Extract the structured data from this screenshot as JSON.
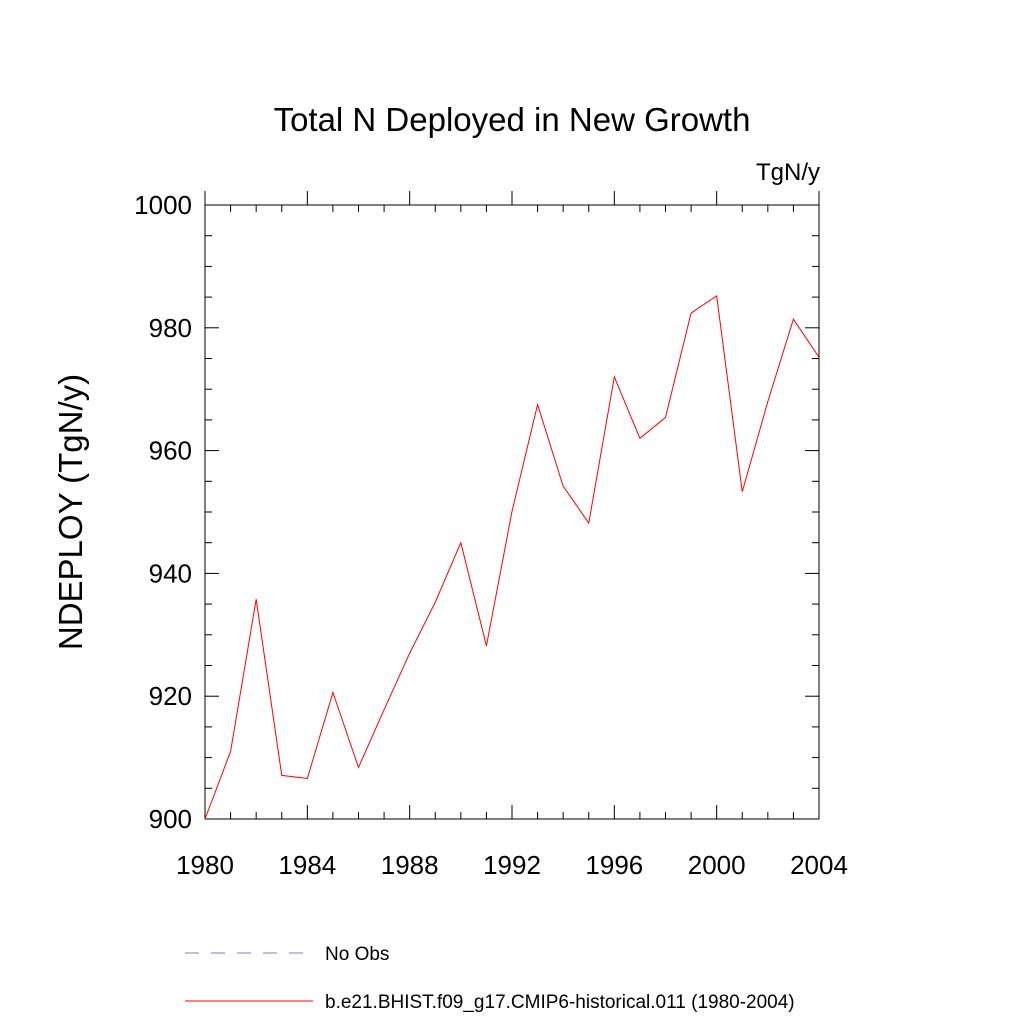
{
  "chart_data": {
    "type": "line",
    "title": "Total N Deployed in New Growth",
    "units_label": "TgN/y",
    "ylabel": "NDEPLOY  (TgN/y)",
    "xlabel": "",
    "xlim": [
      1980,
      2004
    ],
    "ylim": [
      900,
      1000
    ],
    "x_ticks": [
      1980,
      1984,
      1988,
      1992,
      1996,
      2000,
      2004
    ],
    "y_ticks": [
      900,
      920,
      940,
      960,
      980,
      1000
    ],
    "grid": false,
    "legend_position": "bottom",
    "x": [
      1980,
      1981,
      1982,
      1983,
      1984,
      1985,
      1986,
      1987,
      1988,
      1989,
      1990,
      1991,
      1992,
      1993,
      1994,
      1995,
      1996,
      1997,
      1998,
      1999,
      2000,
      2001,
      2002,
      2003,
      2004
    ],
    "series": [
      {
        "name": "b.e21.BHIST.f09_g17.CMIP6-historical.011 (1980-2004)",
        "color": "#ff0000",
        "style": "solid",
        "values": [
          900.0,
          911.0,
          935.8,
          907.1,
          906.6,
          920.6,
          908.4,
          917.8,
          927.0,
          935.3,
          945.0,
          928.2,
          950.1,
          967.5,
          954.2,
          948.2,
          972.0,
          962.0,
          965.4,
          982.4,
          985.2,
          953.3,
          968.0,
          981.4,
          975.2
        ]
      }
    ],
    "legend": [
      {
        "label": "No Obs",
        "color": "#7d7bc9",
        "style": "dashed"
      },
      {
        "label": "b.e21.BHIST.f09_g17.CMIP6-historical.011 (1980-2004)",
        "color": "#ff0000",
        "style": "solid"
      }
    ]
  }
}
